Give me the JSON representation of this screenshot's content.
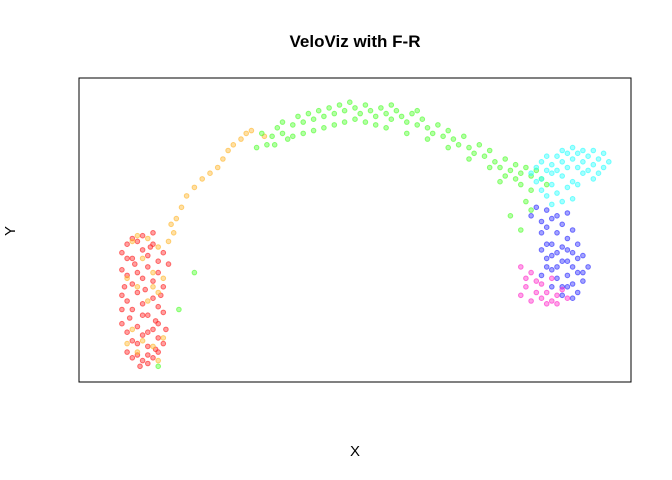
{
  "chart_data": {
    "type": "scatter",
    "title": "VeloViz with F-R",
    "xlabel": "X",
    "ylabel": "Y",
    "axes_ticks": false,
    "grid": false,
    "legend": "none",
    "point_alpha": 0.45,
    "clusters": [
      {
        "color": "#ff2a2a",
        "points": [
          [
            0.05,
            0.42
          ],
          [
            0.06,
            0.45
          ],
          [
            0.07,
            0.4
          ],
          [
            0.08,
            0.46
          ],
          [
            0.09,
            0.43
          ],
          [
            0.1,
            0.41
          ],
          [
            0.11,
            0.45
          ],
          [
            0.12,
            0.39
          ],
          [
            0.05,
            0.36
          ],
          [
            0.06,
            0.34
          ],
          [
            0.07,
            0.31
          ],
          [
            0.08,
            0.35
          ],
          [
            0.09,
            0.33
          ],
          [
            0.1,
            0.37
          ],
          [
            0.11,
            0.32
          ],
          [
            0.12,
            0.35
          ],
          [
            0.13,
            0.3
          ],
          [
            0.05,
            0.27
          ],
          [
            0.06,
            0.25
          ],
          [
            0.07,
            0.22
          ],
          [
            0.08,
            0.28
          ],
          [
            0.09,
            0.24
          ],
          [
            0.1,
            0.2
          ],
          [
            0.11,
            0.26
          ],
          [
            0.12,
            0.23
          ],
          [
            0.13,
            0.21
          ],
          [
            0.05,
            0.17
          ],
          [
            0.06,
            0.14
          ],
          [
            0.07,
            0.11
          ],
          [
            0.08,
            0.16
          ],
          [
            0.09,
            0.13
          ],
          [
            0.1,
            0.09
          ],
          [
            0.11,
            0.15
          ],
          [
            0.12,
            0.12
          ],
          [
            0.13,
            0.1
          ],
          [
            0.06,
            0.07
          ],
          [
            0.07,
            0.05
          ],
          [
            0.08,
            0.06
          ],
          [
            0.09,
            0.04
          ],
          [
            0.1,
            0.06
          ],
          [
            0.11,
            0.05
          ],
          [
            0.12,
            0.07
          ],
          [
            0.085,
            0.02
          ],
          [
            0.1,
            0.03
          ],
          [
            0.075,
            0.38
          ],
          [
            0.095,
            0.29
          ],
          [
            0.115,
            0.18
          ],
          [
            0.065,
            0.19
          ],
          [
            0.105,
            0.44
          ],
          [
            0.125,
            0.27
          ],
          [
            0.055,
            0.3
          ],
          [
            0.135,
            0.15
          ],
          [
            0.09,
            0.48
          ],
          [
            0.11,
            0.49
          ],
          [
            0.07,
            0.47
          ],
          [
            0.13,
            0.42
          ],
          [
            0.14,
            0.38
          ],
          [
            0.06,
            0.4
          ],
          [
            0.1,
            0.14
          ],
          [
            0.12,
            0.17
          ],
          [
            0.08,
            0.1
          ],
          [
            0.09,
            0.2
          ],
          [
            0.115,
            0.08
          ],
          [
            0.05,
            0.22
          ]
        ]
      },
      {
        "color": "#ffb833",
        "points": [
          [
            0.07,
            0.46
          ],
          [
            0.08,
            0.48
          ],
          [
            0.1,
            0.47
          ],
          [
            0.12,
            0.44
          ],
          [
            0.14,
            0.46
          ],
          [
            0.09,
            0.4
          ],
          [
            0.11,
            0.35
          ],
          [
            0.13,
            0.33
          ],
          [
            0.06,
            0.33
          ],
          [
            0.08,
            0.3
          ],
          [
            0.1,
            0.25
          ],
          [
            0.12,
            0.28
          ],
          [
            0.07,
            0.15
          ],
          [
            0.09,
            0.11
          ],
          [
            0.11,
            0.09
          ],
          [
            0.13,
            0.12
          ],
          [
            0.06,
            0.1
          ],
          [
            0.08,
            0.07
          ],
          [
            0.12,
            0.04
          ],
          [
            0.15,
            0.49
          ],
          [
            0.145,
            0.52
          ],
          [
            0.155,
            0.54
          ],
          [
            0.165,
            0.58
          ],
          [
            0.175,
            0.62
          ],
          [
            0.19,
            0.65
          ],
          [
            0.205,
            0.68
          ],
          [
            0.22,
            0.7
          ],
          [
            0.235,
            0.72
          ],
          [
            0.245,
            0.75
          ],
          [
            0.255,
            0.78
          ],
          [
            0.265,
            0.8
          ],
          [
            0.28,
            0.82
          ],
          [
            0.29,
            0.84
          ],
          [
            0.3,
            0.85
          ],
          [
            0.325,
            0.83
          ],
          [
            0.11,
            0.3
          ]
        ]
      },
      {
        "color": "#55ff33",
        "points": [
          [
            0.32,
            0.84
          ],
          [
            0.34,
            0.83
          ],
          [
            0.35,
            0.86
          ],
          [
            0.36,
            0.88
          ],
          [
            0.37,
            0.82
          ],
          [
            0.38,
            0.87
          ],
          [
            0.39,
            0.9
          ],
          [
            0.4,
            0.88
          ],
          [
            0.41,
            0.91
          ],
          [
            0.42,
            0.89
          ],
          [
            0.43,
            0.92
          ],
          [
            0.44,
            0.9
          ],
          [
            0.45,
            0.93
          ],
          [
            0.46,
            0.91
          ],
          [
            0.47,
            0.94
          ],
          [
            0.48,
            0.92
          ],
          [
            0.49,
            0.95
          ],
          [
            0.5,
            0.93
          ],
          [
            0.51,
            0.91
          ],
          [
            0.52,
            0.94
          ],
          [
            0.53,
            0.92
          ],
          [
            0.54,
            0.9
          ],
          [
            0.55,
            0.93
          ],
          [
            0.56,
            0.91
          ],
          [
            0.57,
            0.89
          ],
          [
            0.58,
            0.92
          ],
          [
            0.59,
            0.9
          ],
          [
            0.6,
            0.88
          ],
          [
            0.61,
            0.91
          ],
          [
            0.62,
            0.87
          ],
          [
            0.63,
            0.89
          ],
          [
            0.64,
            0.86
          ],
          [
            0.65,
            0.84
          ],
          [
            0.66,
            0.87
          ],
          [
            0.67,
            0.83
          ],
          [
            0.68,
            0.85
          ],
          [
            0.69,
            0.82
          ],
          [
            0.7,
            0.8
          ],
          [
            0.71,
            0.83
          ],
          [
            0.72,
            0.79
          ],
          [
            0.73,
            0.77
          ],
          [
            0.74,
            0.8
          ],
          [
            0.75,
            0.76
          ],
          [
            0.76,
            0.78
          ],
          [
            0.77,
            0.74
          ],
          [
            0.78,
            0.72
          ],
          [
            0.79,
            0.75
          ],
          [
            0.8,
            0.71
          ],
          [
            0.81,
            0.73
          ],
          [
            0.82,
            0.7
          ],
          [
            0.83,
            0.72
          ],
          [
            0.84,
            0.69
          ],
          [
            0.85,
            0.71
          ],
          [
            0.82,
            0.66
          ],
          [
            0.84,
            0.64
          ],
          [
            0.83,
            0.6
          ],
          [
            0.8,
            0.55
          ],
          [
            0.82,
            0.5
          ],
          [
            0.84,
            0.57
          ],
          [
            0.86,
            0.68
          ],
          [
            0.87,
            0.66
          ],
          [
            0.44,
            0.86
          ],
          [
            0.46,
            0.87
          ],
          [
            0.48,
            0.88
          ],
          [
            0.5,
            0.89
          ],
          [
            0.52,
            0.88
          ],
          [
            0.54,
            0.87
          ],
          [
            0.42,
            0.85
          ],
          [
            0.4,
            0.84
          ],
          [
            0.38,
            0.83
          ],
          [
            0.36,
            0.84
          ],
          [
            0.56,
            0.86
          ],
          [
            0.6,
            0.84
          ],
          [
            0.64,
            0.82
          ],
          [
            0.68,
            0.79
          ],
          [
            0.72,
            0.75
          ],
          [
            0.76,
            0.72
          ],
          [
            0.79,
            0.69
          ],
          [
            0.12,
            0.02
          ],
          [
            0.16,
            0.22
          ],
          [
            0.19,
            0.35
          ],
          [
            0.81,
            0.68
          ],
          [
            0.78,
            0.67
          ],
          [
            0.33,
            0.8
          ],
          [
            0.31,
            0.79
          ],
          [
            0.345,
            0.8
          ],
          [
            0.57,
            0.94
          ],
          [
            0.62,
            0.92
          ]
        ]
      },
      {
        "color": "#33ffff",
        "points": [
          [
            0.84,
            0.7
          ],
          [
            0.85,
            0.72
          ],
          [
            0.86,
            0.74
          ],
          [
            0.87,
            0.71
          ],
          [
            0.88,
            0.73
          ],
          [
            0.89,
            0.76
          ],
          [
            0.9,
            0.74
          ],
          [
            0.91,
            0.72
          ],
          [
            0.92,
            0.75
          ],
          [
            0.93,
            0.77
          ],
          [
            0.94,
            0.74
          ],
          [
            0.95,
            0.76
          ],
          [
            0.96,
            0.73
          ],
          [
            0.97,
            0.75
          ],
          [
            0.98,
            0.72
          ],
          [
            0.86,
            0.68
          ],
          [
            0.88,
            0.66
          ],
          [
            0.9,
            0.69
          ],
          [
            0.92,
            0.67
          ],
          [
            0.94,
            0.7
          ],
          [
            0.96,
            0.68
          ],
          [
            0.89,
            0.71
          ],
          [
            0.91,
            0.77
          ],
          [
            0.93,
            0.72
          ],
          [
            0.95,
            0.71
          ],
          [
            0.87,
            0.76
          ],
          [
            0.85,
            0.67
          ],
          [
            0.97,
            0.7
          ],
          [
            0.99,
            0.74
          ],
          [
            0.94,
            0.78
          ],
          [
            0.92,
            0.79
          ],
          [
            0.9,
            0.78
          ],
          [
            0.88,
            0.7
          ],
          [
            0.96,
            0.78
          ],
          [
            0.98,
            0.77
          ],
          [
            0.93,
            0.66
          ],
          [
            0.91,
            0.65
          ],
          [
            0.89,
            0.63
          ],
          [
            0.87,
            0.62
          ],
          [
            0.9,
            0.6
          ],
          [
            0.88,
            0.59
          ],
          [
            0.92,
            0.61
          ],
          [
            0.86,
            0.64
          ]
        ]
      },
      {
        "color": "#3333ff",
        "points": [
          [
            0.84,
            0.55
          ],
          [
            0.86,
            0.53
          ],
          [
            0.87,
            0.51
          ],
          [
            0.88,
            0.54
          ],
          [
            0.89,
            0.49
          ],
          [
            0.9,
            0.52
          ],
          [
            0.91,
            0.47
          ],
          [
            0.92,
            0.5
          ],
          [
            0.93,
            0.45
          ],
          [
            0.88,
            0.45
          ],
          [
            0.89,
            0.42
          ],
          [
            0.9,
            0.39
          ],
          [
            0.91,
            0.43
          ],
          [
            0.92,
            0.37
          ],
          [
            0.93,
            0.4
          ],
          [
            0.94,
            0.35
          ],
          [
            0.87,
            0.4
          ],
          [
            0.88,
            0.36
          ],
          [
            0.89,
            0.33
          ],
          [
            0.9,
            0.3
          ],
          [
            0.91,
            0.34
          ],
          [
            0.92,
            0.31
          ],
          [
            0.93,
            0.28
          ],
          [
            0.94,
            0.32
          ],
          [
            0.86,
            0.43
          ],
          [
            0.87,
            0.37
          ],
          [
            0.86,
            0.34
          ],
          [
            0.88,
            0.3
          ],
          [
            0.9,
            0.27
          ],
          [
            0.92,
            0.26
          ],
          [
            0.93,
            0.35
          ],
          [
            0.91,
            0.39
          ],
          [
            0.9,
            0.44
          ],
          [
            0.92,
            0.42
          ],
          [
            0.89,
            0.37
          ],
          [
            0.86,
            0.49
          ],
          [
            0.87,
            0.45
          ],
          [
            0.94,
            0.41
          ],
          [
            0.95,
            0.37
          ],
          [
            0.91,
            0.3
          ],
          [
            0.88,
            0.41
          ],
          [
            0.85,
            0.58
          ],
          [
            0.87,
            0.57
          ],
          [
            0.89,
            0.55
          ],
          [
            0.91,
            0.56
          ]
        ]
      },
      {
        "color": "#ff33cc",
        "points": [
          [
            0.82,
            0.37
          ],
          [
            0.84,
            0.35
          ],
          [
            0.85,
            0.32
          ],
          [
            0.83,
            0.3
          ],
          [
            0.82,
            0.27
          ],
          [
            0.84,
            0.25
          ],
          [
            0.86,
            0.26
          ],
          [
            0.87,
            0.28
          ],
          [
            0.88,
            0.25
          ],
          [
            0.89,
            0.27
          ],
          [
            0.9,
            0.29
          ],
          [
            0.85,
            0.28
          ],
          [
            0.86,
            0.31
          ],
          [
            0.88,
            0.33
          ],
          [
            0.83,
            0.33
          ],
          [
            0.89,
            0.24
          ],
          [
            0.91,
            0.26
          ],
          [
            0.87,
            0.24
          ]
        ]
      }
    ]
  }
}
